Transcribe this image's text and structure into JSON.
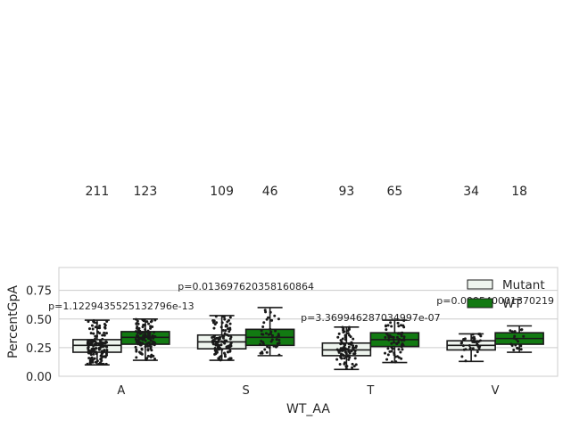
{
  "chart_data": {
    "type": "box",
    "xlabel": "WT_AA",
    "ylabel": "PercentGpA",
    "categories": [
      "A",
      "S",
      "T",
      "V"
    ],
    "ylim": [
      0.0,
      0.95
    ],
    "yticks": [
      "0.00",
      "0.25",
      "0.50",
      "0.75"
    ],
    "grid": "horizontal",
    "legend_position": "top-right",
    "series": [
      {
        "name": "Mutant",
        "color": "#eef4ee",
        "outline": "#1a1a1a",
        "counts": [
          211,
          109,
          93,
          34
        ],
        "boxes": [
          {
            "whislo": 0.1,
            "q1": 0.21,
            "median": 0.27,
            "q3": 0.32,
            "whishi": 0.49
          },
          {
            "whislo": 0.14,
            "q1": 0.24,
            "median": 0.3,
            "q3": 0.36,
            "whishi": 0.53
          },
          {
            "whislo": 0.06,
            "q1": 0.18,
            "median": 0.23,
            "q3": 0.29,
            "whishi": 0.43
          },
          {
            "whislo": 0.13,
            "q1": 0.23,
            "median": 0.27,
            "q3": 0.31,
            "whishi": 0.37
          }
        ]
      },
      {
        "name": "WT",
        "color": "#127a12",
        "outline": "#1a1a1a",
        "counts": [
          123,
          46,
          65,
          18
        ],
        "boxes": [
          {
            "whislo": 0.14,
            "q1": 0.28,
            "median": 0.34,
            "q3": 0.39,
            "whishi": 0.5
          },
          {
            "whislo": 0.18,
            "q1": 0.27,
            "median": 0.34,
            "q3": 0.41,
            "whishi": 0.6
          },
          {
            "whislo": 0.12,
            "q1": 0.26,
            "median": 0.32,
            "q3": 0.38,
            "whishi": 0.49
          },
          {
            "whislo": 0.21,
            "q1": 0.28,
            "median": 0.33,
            "q3": 0.38,
            "whishi": 0.44
          }
        ]
      }
    ],
    "annotations": [
      {
        "category": "A",
        "text": "p=1.1229435525132796e-13"
      },
      {
        "category": "S",
        "text": "p=0.013697620358160864"
      },
      {
        "category": "T",
        "text": "p=3.369946287034997e-07"
      },
      {
        "category": "V",
        "text": "p=0.009540001370219"
      }
    ]
  }
}
